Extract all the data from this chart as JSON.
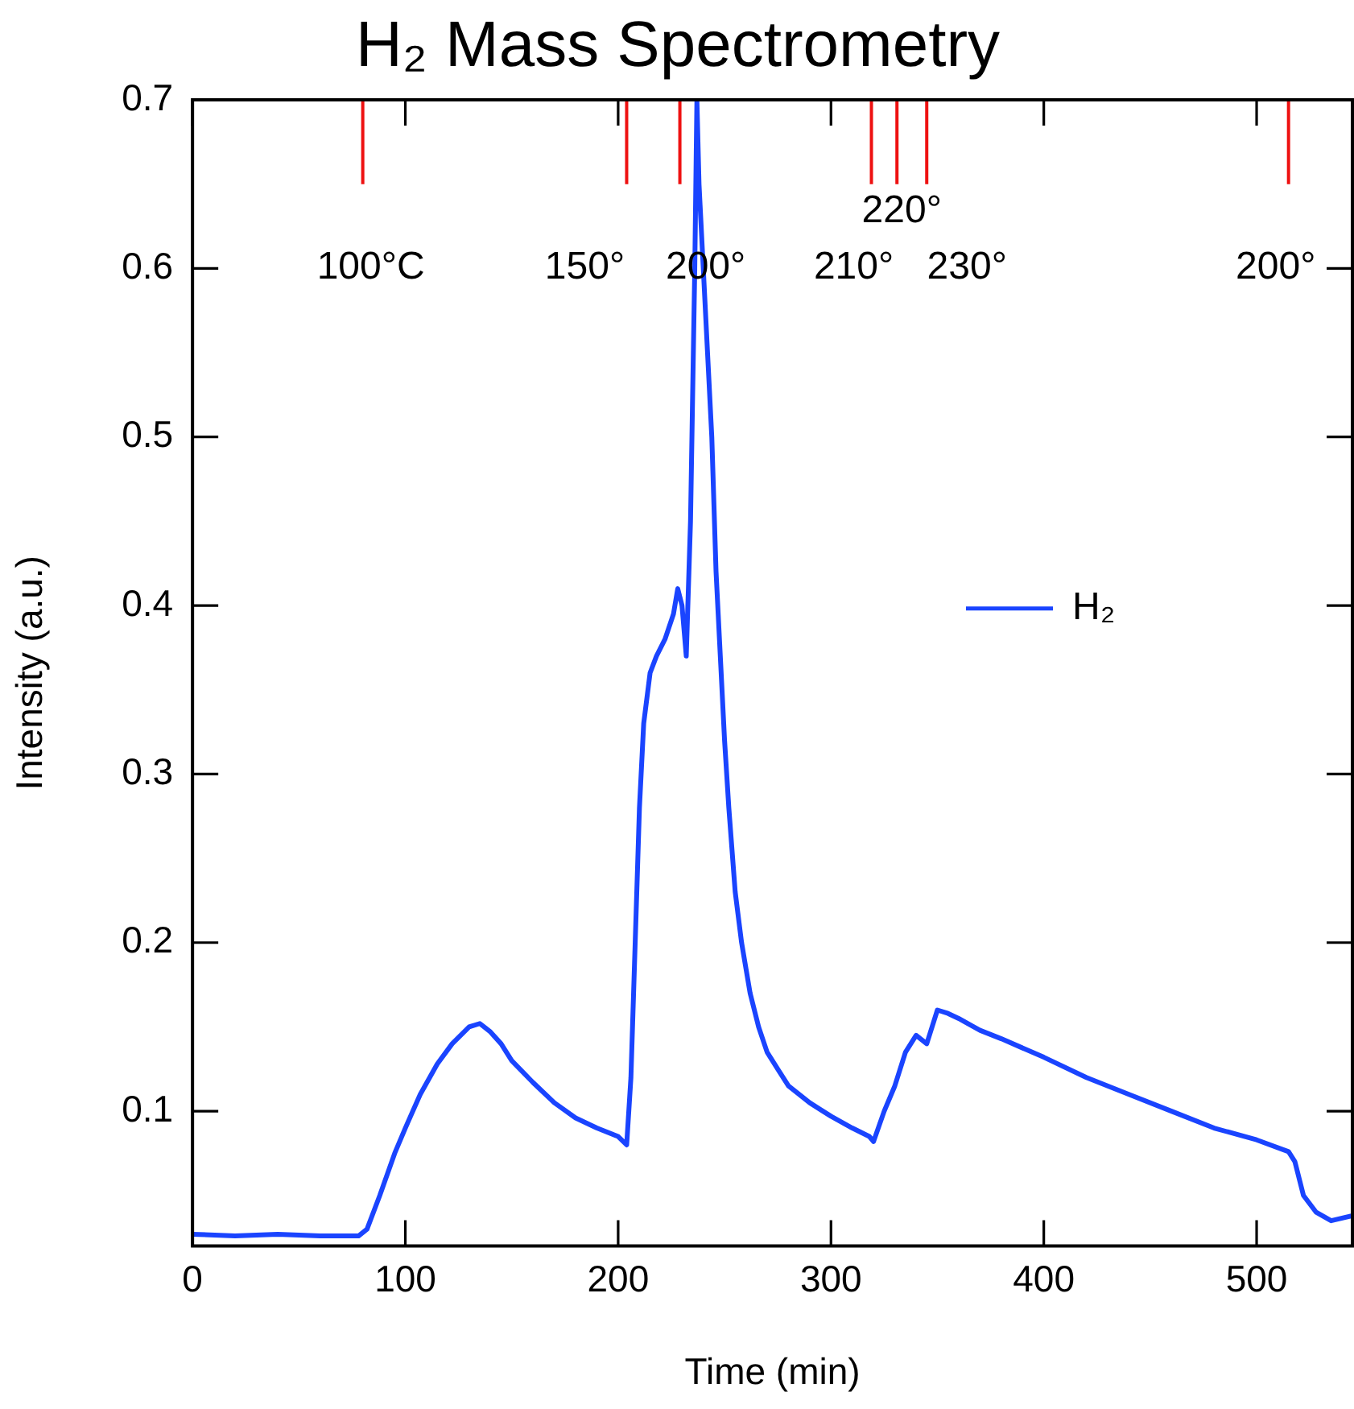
{
  "chart_data": {
    "type": "line",
    "title": "H₂ Mass Spectrometry",
    "xlabel": "Time (min)",
    "ylabel": "Intensity (a.u.)",
    "xlim": [
      0,
      545
    ],
    "xticks": [
      0,
      100,
      200,
      300,
      400,
      500
    ],
    "ylim": [
      0.02,
      0.7
    ],
    "yticks": [
      0.1,
      0.2,
      0.3,
      0.4,
      0.5,
      0.6,
      0.7
    ],
    "legend": "right",
    "marker": "none",
    "line_style": "solid",
    "annotations": [
      {
        "text": "100°C",
        "x": 80,
        "y": 0.65
      },
      {
        "text": "150°",
        "x": 204,
        "y": 0.65
      },
      {
        "text": "200°",
        "x": 229,
        "y": 0.65
      },
      {
        "text": "210°",
        "x": 319,
        "y": 0.65
      },
      {
        "text": "220°",
        "x": 331,
        "y": 0.65
      },
      {
        "text": "230°",
        "x": 345,
        "y": 0.65
      },
      {
        "text": "200°",
        "x": 515,
        "y": 0.65
      }
    ],
    "series": [
      {
        "name": "H₂",
        "color": "#1a44ff",
        "x": [
          0,
          20,
          40,
          60,
          78,
          82,
          88,
          95,
          100,
          107,
          115,
          122,
          130,
          135,
          140,
          145,
          150,
          160,
          170,
          180,
          190,
          200,
          204,
          206,
          208,
          210,
          212,
          215,
          218,
          222,
          226,
          228,
          230,
          232,
          234,
          236,
          237,
          238,
          240,
          242,
          244,
          246,
          248,
          250,
          252,
          255,
          258,
          262,
          266,
          270,
          275,
          280,
          290,
          300,
          310,
          318,
          320,
          325,
          330,
          335,
          340,
          345,
          350,
          355,
          360,
          370,
          380,
          400,
          420,
          440,
          460,
          480,
          500,
          515,
          518,
          522,
          528,
          535,
          545
        ],
        "values": [
          0.027,
          0.026,
          0.027,
          0.026,
          0.026,
          0.03,
          0.05,
          0.075,
          0.09,
          0.11,
          0.128,
          0.14,
          0.15,
          0.152,
          0.147,
          0.14,
          0.13,
          0.117,
          0.105,
          0.096,
          0.09,
          0.085,
          0.08,
          0.12,
          0.2,
          0.28,
          0.33,
          0.36,
          0.37,
          0.38,
          0.395,
          0.41,
          0.4,
          0.37,
          0.45,
          0.6,
          0.7,
          0.65,
          0.6,
          0.55,
          0.5,
          0.42,
          0.37,
          0.32,
          0.28,
          0.23,
          0.2,
          0.17,
          0.15,
          0.135,
          0.125,
          0.115,
          0.105,
          0.097,
          0.09,
          0.085,
          0.082,
          0.1,
          0.115,
          0.135,
          0.145,
          0.14,
          0.16,
          0.158,
          0.155,
          0.148,
          0.143,
          0.132,
          0.12,
          0.11,
          0.1,
          0.09,
          0.083,
          0.076,
          0.07,
          0.05,
          0.04,
          0.035,
          0.038
        ]
      },
      {
        "color": "#ee1111",
        "x": [
          80,
          80
        ],
        "values": [
          0.65,
          0.7
        ]
      },
      {
        "color": "#ee1111",
        "x": [
          204,
          204
        ],
        "values": [
          0.65,
          0.7
        ]
      },
      {
        "color": "#ee1111",
        "x": [
          229,
          229
        ],
        "values": [
          0.65,
          0.7
        ]
      },
      {
        "color": "#ee1111",
        "x": [
          319,
          319
        ],
        "values": [
          0.65,
          0.7
        ]
      },
      {
        "color": "#ee1111",
        "x": [
          331,
          331
        ],
        "values": [
          0.65,
          0.7
        ]
      },
      {
        "color": "#ee1111",
        "x": [
          345,
          345
        ],
        "values": [
          0.65,
          0.7
        ]
      },
      {
        "color": "#ee1111",
        "x": [
          515,
          515
        ],
        "values": [
          0.65,
          0.7
        ]
      }
    ]
  }
}
